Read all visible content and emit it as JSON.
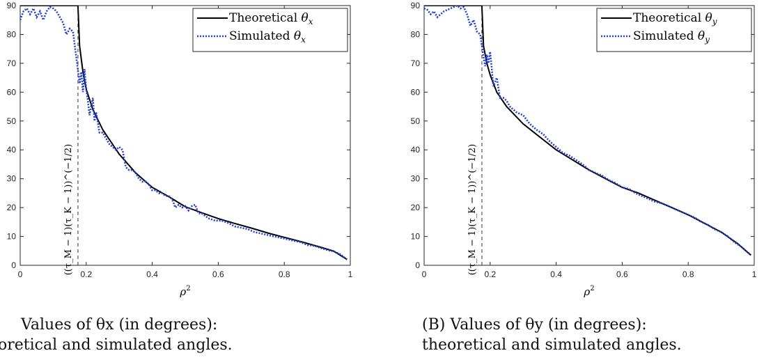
{
  "chart_data": [
    {
      "type": "line",
      "xlabel": "ρ²",
      "ylabel": "",
      "xlim": [
        0,
        1
      ],
      "ylim": [
        0,
        90
      ],
      "xticks": [
        0,
        0.2,
        0.4,
        0.6,
        0.8,
        1
      ],
      "xtick_labels": [
        "0",
        "0.2",
        "0.4",
        "0.6",
        "0.8",
        "1"
      ],
      "yticks": [
        0,
        10,
        20,
        30,
        40,
        50,
        60,
        70,
        80,
        90
      ],
      "ytick_labels": [
        "0",
        "10",
        "20",
        "30",
        "40",
        "50",
        "60",
        "70",
        "80",
        "90"
      ],
      "legend_position": "top-right",
      "vline": {
        "x": 0.175,
        "style": "dashed",
        "label": "((τ_M − 1)(τ_K − 1))^(−1/2)"
      },
      "series": [
        {
          "name": "Theoretical θx",
          "style": "solid",
          "color": "#000000",
          "x": [
            0,
            0.16,
            0.175,
            0.18,
            0.19,
            0.2,
            0.22,
            0.25,
            0.3,
            0.35,
            0.4,
            0.45,
            0.5,
            0.55,
            0.6,
            0.65,
            0.7,
            0.75,
            0.8,
            0.85,
            0.9,
            0.95,
            0.99
          ],
          "y": [
            90,
            90,
            90,
            76,
            67,
            61,
            54,
            47,
            38.5,
            32,
            27,
            23.8,
            20.3,
            18.2,
            16.2,
            14.5,
            12.9,
            11.2,
            9.7,
            8.2,
            6.6,
            4.9,
            2
          ]
        },
        {
          "name": "Simulated θx",
          "style": "dotted",
          "color": "#1f3fd6",
          "x": [
            0,
            0.01,
            0.02,
            0.03,
            0.04,
            0.05,
            0.06,
            0.07,
            0.08,
            0.09,
            0.1,
            0.11,
            0.12,
            0.13,
            0.14,
            0.15,
            0.16,
            0.17,
            0.18,
            0.185,
            0.19,
            0.195,
            0.2,
            0.205,
            0.21,
            0.22,
            0.225,
            0.23,
            0.24,
            0.25,
            0.26,
            0.27,
            0.28,
            0.29,
            0.3,
            0.31,
            0.32,
            0.33,
            0.34,
            0.35,
            0.36,
            0.37,
            0.38,
            0.39,
            0.4,
            0.41,
            0.42,
            0.43,
            0.44,
            0.45,
            0.46,
            0.47,
            0.48,
            0.49,
            0.5,
            0.51,
            0.52,
            0.53,
            0.54,
            0.55,
            0.57,
            0.59,
            0.61,
            0.63,
            0.65,
            0.67,
            0.69,
            0.71,
            0.73,
            0.75,
            0.77,
            0.79,
            0.81,
            0.83,
            0.85,
            0.87,
            0.89,
            0.91,
            0.93,
            0.95,
            0.97,
            0.99
          ],
          "y": [
            85,
            88,
            89,
            87,
            89,
            86,
            88,
            85,
            88,
            89.5,
            89,
            88,
            86,
            84,
            80,
            82,
            81,
            72,
            63,
            67,
            60,
            68,
            61,
            57,
            52,
            58,
            50,
            53,
            46,
            46,
            44,
            42,
            41,
            40,
            41,
            40,
            34,
            33,
            33,
            32,
            30,
            29,
            29,
            28,
            26,
            26,
            25,
            25,
            24,
            24,
            23,
            20,
            21,
            20,
            20.5,
            19,
            20.5,
            21,
            18,
            18,
            16.3,
            15.5,
            15.5,
            14.7,
            13.5,
            13,
            12.5,
            11.5,
            11,
            10.5,
            10,
            9.5,
            9,
            8.5,
            8,
            7,
            6.8,
            6,
            5.3,
            4.8,
            3.8,
            2
          ]
        }
      ]
    },
    {
      "type": "line",
      "xlabel": "ρ²",
      "ylabel": "",
      "xlim": [
        0,
        1
      ],
      "ylim": [
        0,
        90
      ],
      "xticks": [
        0,
        0.2,
        0.4,
        0.6,
        0.8,
        1
      ],
      "xtick_labels": [
        "0",
        "0.2",
        "0.4",
        "0.6",
        "0.8",
        "1"
      ],
      "yticks": [
        0,
        10,
        20,
        30,
        40,
        50,
        60,
        70,
        80,
        90
      ],
      "ytick_labels": [
        "0",
        "10",
        "20",
        "30",
        "40",
        "50",
        "60",
        "70",
        "80",
        "90"
      ],
      "legend_position": "top-right",
      "vline": {
        "x": 0.175,
        "style": "dashed",
        "label": "((τ_M − 1)(τ_K − 1))^(−1/2)"
      },
      "series": [
        {
          "name": "Theoretical θy",
          "style": "solid",
          "color": "#000000",
          "x": [
            0,
            0.16,
            0.175,
            0.18,
            0.19,
            0.2,
            0.22,
            0.25,
            0.3,
            0.35,
            0.4,
            0.45,
            0.5,
            0.55,
            0.6,
            0.65,
            0.7,
            0.75,
            0.8,
            0.85,
            0.9,
            0.95,
            0.99
          ],
          "y": [
            90,
            90,
            90,
            76,
            70,
            66,
            60,
            55,
            49,
            44.5,
            40,
            36.5,
            33,
            30,
            27,
            25,
            22.5,
            20,
            17.5,
            14.5,
            11.5,
            7.5,
            3.5
          ]
        },
        {
          "name": "Simulated θy",
          "style": "dotted",
          "color": "#1f3fd6",
          "x": [
            0,
            0.01,
            0.02,
            0.03,
            0.04,
            0.05,
            0.06,
            0.07,
            0.08,
            0.09,
            0.1,
            0.11,
            0.12,
            0.13,
            0.14,
            0.15,
            0.16,
            0.17,
            0.18,
            0.185,
            0.19,
            0.195,
            0.2,
            0.205,
            0.21,
            0.22,
            0.23,
            0.24,
            0.25,
            0.26,
            0.28,
            0.3,
            0.32,
            0.34,
            0.36,
            0.38,
            0.4,
            0.42,
            0.44,
            0.46,
            0.48,
            0.5,
            0.52,
            0.54,
            0.56,
            0.58,
            0.6,
            0.62,
            0.64,
            0.66,
            0.68,
            0.7,
            0.72,
            0.74,
            0.76,
            0.78,
            0.8,
            0.82,
            0.84,
            0.86,
            0.88,
            0.9,
            0.92,
            0.94,
            0.96,
            0.98,
            0.99
          ],
          "y": [
            89,
            88.5,
            87,
            88,
            86,
            87,
            88,
            88.5,
            89,
            89.5,
            90,
            89,
            89.5,
            87,
            83,
            85,
            81,
            80,
            72,
            69,
            73,
            70,
            74,
            68,
            62,
            65,
            58,
            58,
            57,
            55,
            53,
            52,
            49,
            47,
            45.5,
            43,
            41,
            39,
            38,
            36.5,
            35,
            33,
            32,
            31,
            29.5,
            28.5,
            27,
            26.5,
            25,
            24,
            23,
            22,
            21.5,
            20.5,
            19.5,
            18.5,
            17.5,
            16.5,
            15,
            14,
            12.5,
            11.5,
            10,
            8,
            6.5,
            4.5,
            3.5
          ]
        }
      ]
    }
  ],
  "captions": {
    "left": {
      "tag": "",
      "line1": "Values of θx (in degrees):",
      "line2": "oretical and simulated angles."
    },
    "right": {
      "tag": "(B)",
      "line1": "Values of θy (in degrees):",
      "line2": "theoretical and simulated angles."
    }
  }
}
